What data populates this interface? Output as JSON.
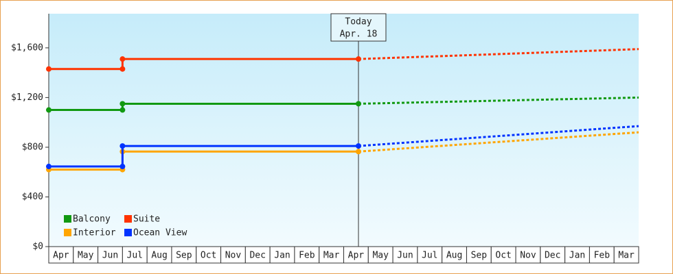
{
  "chart_data": {
    "type": "line",
    "x": [
      0,
      3,
      3,
      12.6
    ],
    "forecast_x": [
      12.6,
      24
    ],
    "series": [
      {
        "name": "Balcony",
        "color": "#119911",
        "values": [
          1100,
          1100,
          1150,
          1150
        ],
        "forecast": [
          1150,
          1200
        ]
      },
      {
        "name": "Suite",
        "color": "#ff3300",
        "values": [
          1430,
          1430,
          1510,
          1510
        ],
        "forecast": [
          1510,
          1590
        ]
      },
      {
        "name": "Interior",
        "color": "#ffa500",
        "values": [
          620,
          620,
          765,
          765
        ],
        "forecast": [
          765,
          920
        ]
      },
      {
        "name": "Ocean View",
        "color": "#0033ff",
        "values": [
          645,
          645,
          810,
          810
        ],
        "forecast": [
          810,
          970
        ]
      }
    ],
    "xlim": [
      0,
      24
    ],
    "xticks": [
      {
        "value": 0.5,
        "label": "Apr"
      },
      {
        "value": 1.5,
        "label": "May"
      },
      {
        "value": 2.5,
        "label": "Jun"
      },
      {
        "value": 3.5,
        "label": "Jul"
      },
      {
        "value": 4.5,
        "label": "Aug"
      },
      {
        "value": 5.5,
        "label": "Sep"
      },
      {
        "value": 6.5,
        "label": "Oct"
      },
      {
        "value": 7.5,
        "label": "Nov"
      },
      {
        "value": 8.5,
        "label": "Dec"
      },
      {
        "value": 9.5,
        "label": "Jan"
      },
      {
        "value": 10.5,
        "label": "Feb"
      },
      {
        "value": 11.5,
        "label": "Mar"
      },
      {
        "value": 12.5,
        "label": "Apr"
      },
      {
        "value": 13.5,
        "label": "May"
      },
      {
        "value": 14.5,
        "label": "Jun"
      },
      {
        "value": 15.5,
        "label": "Jul"
      },
      {
        "value": 16.5,
        "label": "Aug"
      },
      {
        "value": 17.5,
        "label": "Sep"
      },
      {
        "value": 18.5,
        "label": "Oct"
      },
      {
        "value": 19.5,
        "label": "Nov"
      },
      {
        "value": 20.5,
        "label": "Dec"
      },
      {
        "value": 21.5,
        "label": "Jan"
      },
      {
        "value": 22.5,
        "label": "Feb"
      },
      {
        "value": 23.5,
        "label": "Mar"
      }
    ],
    "ylim": [
      0,
      1875
    ],
    "yticks": [
      {
        "value": 0,
        "label": "$0"
      },
      {
        "value": 400,
        "label": "$400"
      },
      {
        "value": 800,
        "label": "$800"
      },
      {
        "value": 1200,
        "label": "$1,200"
      },
      {
        "value": 1600,
        "label": "$1,600"
      }
    ],
    "annotation": {
      "x": 12.6,
      "lines": [
        "Today",
        "Apr. 18"
      ]
    },
    "legend": "lower-left"
  }
}
